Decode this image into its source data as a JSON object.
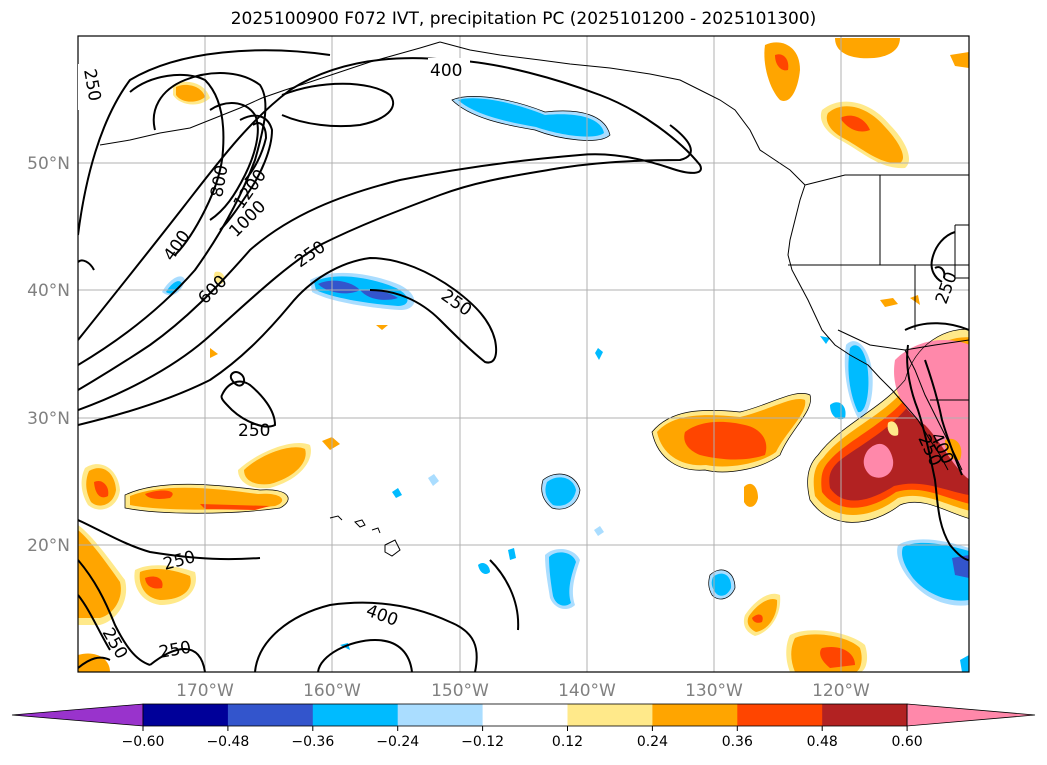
{
  "title": "2025100900 F072 IVT, precipitation PC (2025101200 - 2025101300)",
  "latitude_labels": [
    "50°N",
    "40°N",
    "30°N",
    "20°N"
  ],
  "longitude_labels": [
    "170°W",
    "160°W",
    "150°W",
    "140°W",
    "130°W",
    "120°W"
  ],
  "ivt_contour_labels": [
    "250",
    "400",
    "250",
    "800",
    "1200",
    "1000",
    "400",
    "600",
    "250",
    "250",
    "250",
    "250",
    "400",
    "250",
    "250",
    "250",
    "400"
  ],
  "colorbar": {
    "tick_labels": [
      "−0.60",
      "−0.48",
      "−0.36",
      "−0.24",
      "−0.12",
      "0.12",
      "0.24",
      "0.36",
      "0.48",
      "0.60"
    ],
    "colors": [
      "#9933cc",
      "#000099",
      "#3355cc",
      "#00bbff",
      "#aaddff",
      "#ffffff",
      "#ffe98a",
      "#ffa500",
      "#ff4500",
      "#b22222",
      "#ff88aa"
    ]
  }
}
